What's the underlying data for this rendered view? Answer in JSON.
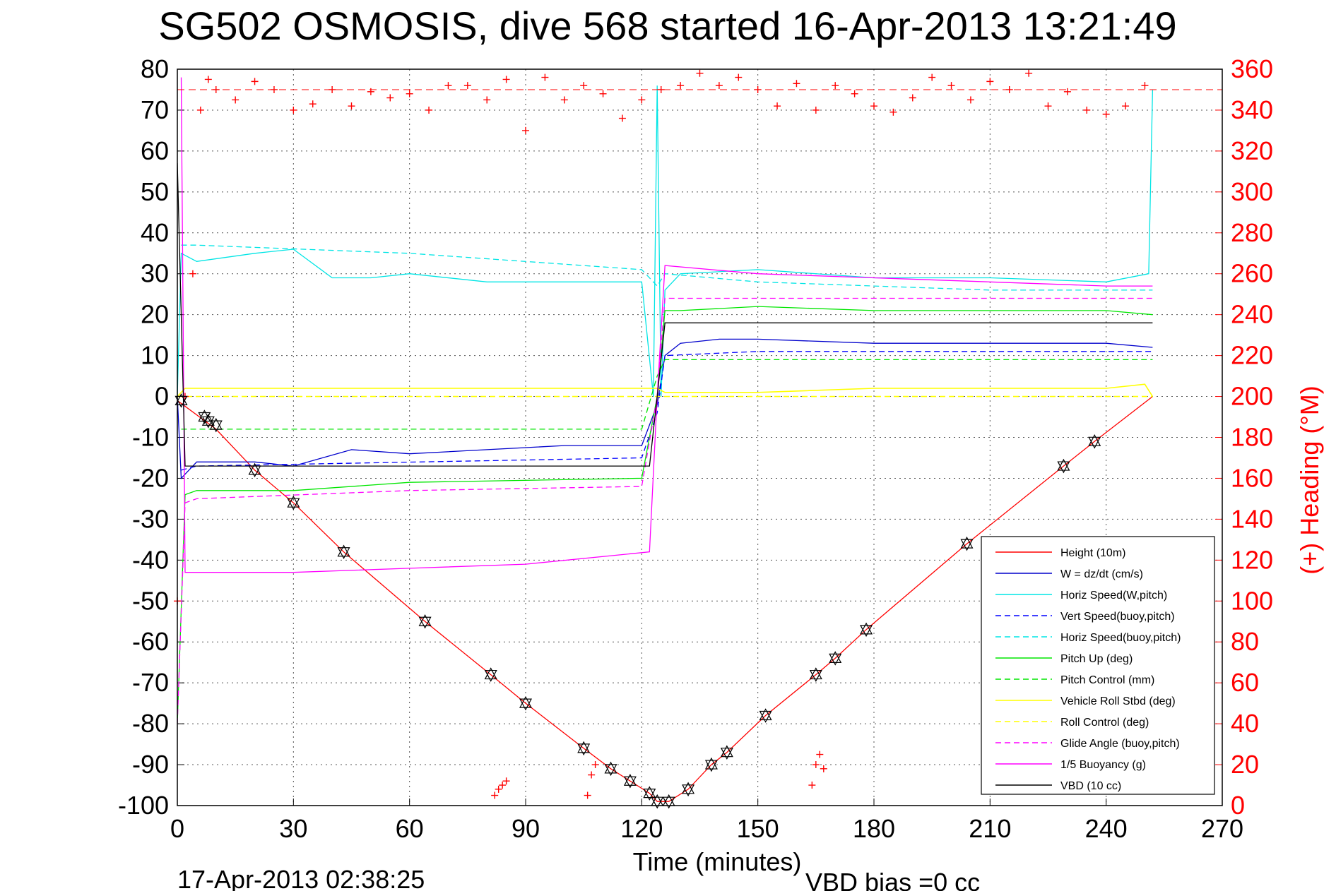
{
  "chart_data": {
    "type": "line",
    "title": "SG502 OSMOSIS, dive 568 started 16-Apr-2013 13:21:49",
    "xlabel": "Time (minutes)",
    "ylabel": "",
    "y2label": "(+) Heading (°M)",
    "xlim": [
      0,
      270
    ],
    "ylim": [
      -100,
      80
    ],
    "y2lim": [
      0,
      360
    ],
    "xticks": [
      "0",
      "30",
      "60",
      "90",
      "120",
      "150",
      "180",
      "210",
      "240",
      "270"
    ],
    "yticks": [
      "80",
      "70",
      "60",
      "50",
      "40",
      "30",
      "20",
      "10",
      "0",
      "-10",
      "-20",
      "-30",
      "-40",
      "-50",
      "-60",
      "-70",
      "-80",
      "-90",
      "-100"
    ],
    "y2ticks": [
      "360",
      "340",
      "320",
      "300",
      "280",
      "260",
      "240",
      "220",
      "200",
      "180",
      "160",
      "140",
      "120",
      "100",
      "80",
      "60",
      "40",
      "20",
      "0"
    ],
    "grid": true,
    "legend_position": "bottom-right",
    "footer_date": "17-Apr-2013 02:38:25",
    "footer_bias": "VBD bias =0 cc",
    "series": [
      {
        "name": "Height (10m)",
        "color": "#ff0000",
        "style": "solid",
        "x": [
          0,
          10,
          20,
          30,
          43,
          64,
          81,
          90,
          105,
          112,
          117,
          122,
          124,
          127,
          132,
          138,
          142,
          152,
          165,
          170,
          178,
          204,
          229,
          237,
          252
        ],
        "y": [
          -1,
          -8,
          -18,
          -26,
          -38,
          -55,
          -68,
          -75,
          -86,
          -91,
          -94,
          -97,
          -99,
          -99,
          -96,
          -90,
          -87,
          -78,
          -68,
          -64,
          -57,
          -36,
          -17,
          -11,
          0
        ]
      },
      {
        "name": "W = dz/dt (cm/s)",
        "color": "#0000cc",
        "style": "solid",
        "x": [
          0,
          1,
          5,
          20,
          30,
          45,
          60,
          80,
          100,
          120,
          124,
          126,
          130,
          140,
          150,
          180,
          210,
          240,
          252
        ],
        "y": [
          0,
          -20,
          -16,
          -16,
          -17,
          -13,
          -14,
          -13,
          -12,
          -12,
          -2,
          10,
          13,
          14,
          14,
          13,
          13,
          13,
          12
        ]
      },
      {
        "name": "Horiz Speed(W,pitch)",
        "color": "#00e5e5",
        "style": "solid",
        "x": [
          0,
          1,
          5,
          20,
          30,
          40,
          50,
          60,
          80,
          100,
          120,
          123,
          124,
          125,
          126,
          130,
          150,
          180,
          210,
          240,
          251,
          252
        ],
        "y": [
          0,
          35,
          33,
          35,
          36,
          29,
          29,
          30,
          28,
          28,
          28,
          0,
          76,
          0,
          26,
          30,
          31,
          29,
          29,
          28,
          30,
          75
        ]
      },
      {
        "name": "Vert Speed(buoy,pitch)",
        "color": "#0000ff",
        "style": "dashed",
        "x": [
          1,
          5,
          120,
          124,
          126,
          150,
          180,
          210,
          240,
          252
        ],
        "y": [
          -18,
          -17,
          -15,
          -4,
          10,
          11,
          11,
          11,
          11,
          11
        ]
      },
      {
        "name": "Horiz Speed(buoy,pitch)",
        "color": "#00e5e5",
        "style": "dashed",
        "x": [
          1,
          5,
          60,
          120,
          124,
          126,
          150,
          180,
          210,
          240,
          252
        ],
        "y": [
          37,
          37,
          35,
          31,
          27,
          30,
          28,
          27,
          26,
          26,
          26
        ]
      },
      {
        "name": "Pitch Up (deg)",
        "color": "#00e600",
        "style": "solid",
        "x": [
          0,
          2,
          5,
          30,
          60,
          120,
          124,
          126,
          130,
          150,
          180,
          210,
          240,
          252
        ],
        "y": [
          -80,
          -24,
          -23,
          -23,
          -21,
          -20,
          0,
          21,
          21,
          22,
          21,
          21,
          21,
          20
        ]
      },
      {
        "name": "Pitch Control (mm)",
        "color": "#00e600",
        "style": "dashed",
        "x": [
          1,
          5,
          60,
          120,
          124,
          126,
          150,
          180,
          210,
          240,
          252
        ],
        "y": [
          -8,
          -8,
          -8,
          -8,
          5,
          9,
          9,
          9,
          9,
          9,
          9
        ]
      },
      {
        "name": "Vehicle Roll Stbd (deg)",
        "color": "#ffff00",
        "style": "solid",
        "x": [
          0,
          2,
          5,
          60,
          120,
          124,
          126,
          150,
          180,
          210,
          240,
          250,
          252
        ],
        "y": [
          0,
          2,
          2,
          2,
          2,
          2,
          1,
          1,
          2,
          2,
          2,
          3,
          0
        ]
      },
      {
        "name": "Roll Control (deg)",
        "color": "#ffff00",
        "style": "dashed",
        "x": [
          0,
          2,
          5,
          60,
          120,
          126,
          150,
          180,
          210,
          240,
          252
        ],
        "y": [
          0,
          0,
          0,
          0,
          0,
          0,
          0,
          0,
          0,
          0,
          0
        ]
      },
      {
        "name": "Glide Angle (buoy,pitch)",
        "color": "#ff00ff",
        "style": "dashed",
        "x": [
          0,
          2,
          5,
          60,
          120,
          124,
          126,
          150,
          180,
          210,
          240,
          252
        ],
        "y": [
          -80,
          -26,
          -25,
          -23,
          -22,
          0,
          24,
          24,
          24,
          24,
          24,
          24
        ]
      },
      {
        "name": "1/5 Buoyancy (g)",
        "color": "#ff00ff",
        "style": "solid",
        "x": [
          1,
          2,
          10,
          30,
          60,
          90,
          122,
          124,
          126,
          150,
          180,
          210,
          240,
          252
        ],
        "y": [
          78,
          -43,
          -43,
          -43,
          -42,
          -41,
          -38,
          0,
          32,
          30,
          29,
          28,
          27,
          27
        ]
      },
      {
        "name": "VBD (10 cc)",
        "color": "#000000",
        "style": "solid",
        "x": [
          0,
          2,
          5,
          122,
          124,
          126,
          150,
          180,
          210,
          252
        ],
        "y": [
          57,
          -17,
          -17,
          -17,
          0,
          18,
          18,
          18,
          18,
          18
        ]
      }
    ],
    "heading": {
      "axis": "right",
      "marker": "+",
      "color": "#ff0000",
      "reference_line": 350,
      "x": [
        0,
        2,
        4,
        6,
        8,
        10,
        15,
        20,
        25,
        30,
        35,
        40,
        45,
        50,
        55,
        60,
        65,
        70,
        75,
        80,
        85,
        90,
        95,
        100,
        105,
        110,
        115,
        120,
        125,
        130,
        135,
        140,
        145,
        150,
        155,
        160,
        165,
        170,
        175,
        180,
        185,
        190,
        195,
        200,
        205,
        210,
        215,
        220,
        225,
        230,
        235,
        240,
        245,
        250
      ],
      "y": [
        100,
        200,
        260,
        340,
        355,
        350,
        345,
        354,
        350,
        340,
        343,
        350,
        342,
        349,
        346,
        348,
        340,
        352,
        352,
        345,
        355,
        330,
        356,
        345,
        352,
        348,
        336,
        345,
        350,
        352,
        358,
        352,
        356,
        350,
        342,
        353,
        340,
        352,
        348,
        342,
        339,
        346,
        356,
        352,
        345,
        354,
        350,
        358,
        342,
        349,
        340,
        338,
        342,
        352
      ]
    },
    "heading_south": {
      "x": [
        82,
        83,
        84,
        85,
        106,
        107,
        108,
        164,
        165,
        166,
        167
      ],
      "y": [
        5,
        8,
        10,
        12,
        5,
        15,
        20,
        10,
        20,
        25,
        18
      ]
    },
    "markers": {
      "marker": "diamond-triangle",
      "color": "#000000",
      "x": [
        1,
        7,
        8,
        10,
        20,
        30,
        43,
        64,
        81,
        90,
        105,
        112,
        117,
        122,
        124,
        127,
        132,
        138,
        142,
        152,
        165,
        170,
        178,
        204,
        229,
        237
      ],
      "y": [
        -1,
        -5,
        -6,
        -7,
        -18,
        -26,
        -38,
        -55,
        -68,
        -75,
        -86,
        -91,
        -94,
        -97,
        -99,
        -99,
        -96,
        -90,
        -87,
        -78,
        -68,
        -64,
        -57,
        -36,
        -17,
        -11
      ]
    }
  }
}
